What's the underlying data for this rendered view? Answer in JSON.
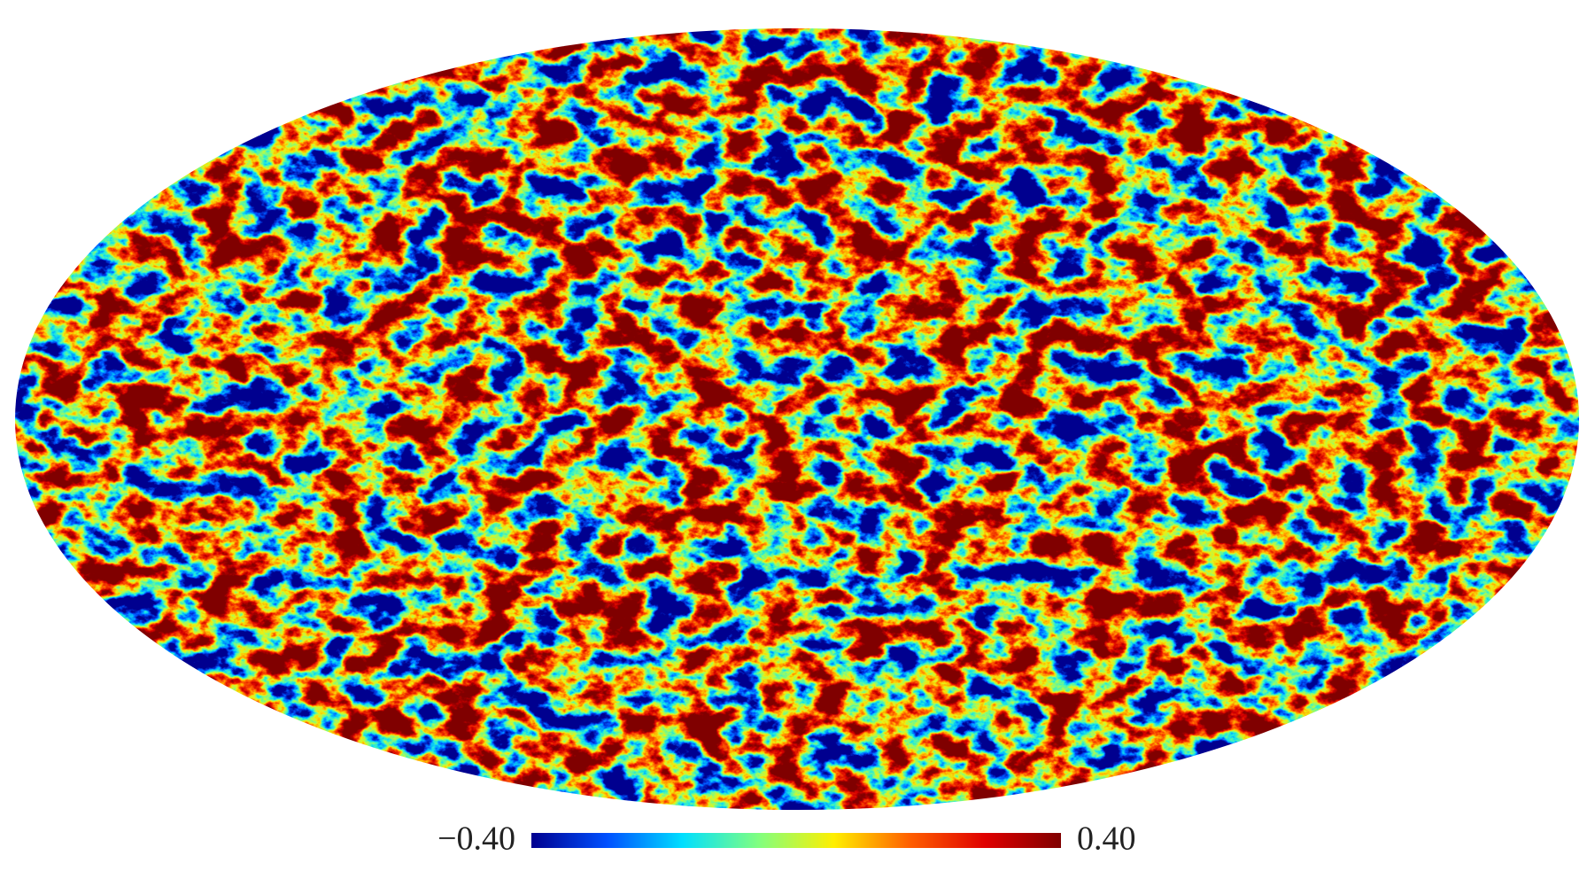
{
  "colorbar": {
    "min": {
      "value": -0.4,
      "label": "−0.40"
    },
    "max": {
      "value": 0.4,
      "label": "0.40"
    },
    "colors": [
      "#00008f",
      "#0050ff",
      "#00dfff",
      "#80ff80",
      "#ffef00",
      "#ff5f00",
      "#df0000",
      "#800000"
    ]
  }
}
